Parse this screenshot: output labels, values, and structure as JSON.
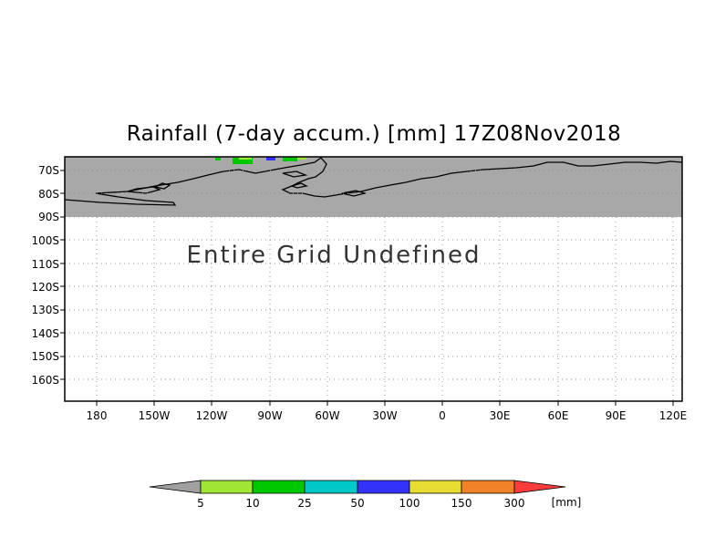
{
  "title": "Rainfall (7-day accum.) [mm] 17Z08Nov2018",
  "message": "Entire Grid Undefined",
  "y_axis_labels": [
    "70S",
    "80S",
    "90S",
    "100S",
    "110S",
    "120S",
    "130S",
    "140S",
    "150S",
    "160S"
  ],
  "x_axis_labels": [
    "180",
    "150W",
    "120W",
    "90W",
    "60W",
    "30W",
    "0",
    "30E",
    "60E",
    "90E",
    "120E"
  ],
  "colors": {
    "undefined": "#a8a8a8",
    "frame": "#000000",
    "grid": "#9a9a9a"
  },
  "colorbar": {
    "unit": "[mm]",
    "bins": [
      {
        "color": "#a0a0a0"
      },
      {
        "color": "#a0e632"
      },
      {
        "color": "#00c800"
      },
      {
        "color": "#00c8c8"
      },
      {
        "color": "#3232fa"
      },
      {
        "color": "#e6dc32"
      },
      {
        "color": "#f08228"
      },
      {
        "color": "#fa3c3c"
      }
    ],
    "labels": [
      "5",
      "10",
      "25",
      "50",
      "100",
      "150",
      "300"
    ]
  }
}
